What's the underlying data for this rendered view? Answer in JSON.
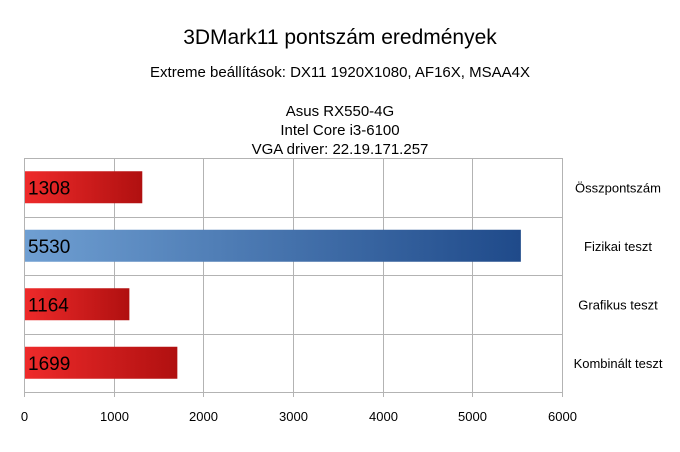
{
  "chart_data": {
    "type": "bar",
    "orientation": "horizontal",
    "title": "3DMark11 pontszám eredmények",
    "subtitle": "Extreme beállítások: DX11 1920X1080, AF16X, MSAA4X",
    "info_lines": [
      "Asus RX550-4G",
      "Intel Core i3-6100",
      "VGA driver: 22.19.171.257"
    ],
    "categories": [
      "Összpontszám",
      "Fizikai teszt",
      "Grafikus teszt",
      "Kombinált teszt"
    ],
    "values": [
      1308,
      5530,
      1164,
      1699
    ],
    "data_labels": [
      "1308",
      "5530",
      "1164",
      "1699"
    ],
    "bar_colors": [
      "#cc1f1f",
      "#4a78b0",
      "#cc1f1f",
      "#cc1f1f"
    ],
    "category_label_position": "right",
    "xlim": [
      0,
      6000
    ],
    "x_ticks": [
      0,
      1000,
      2000,
      3000,
      4000,
      5000,
      6000
    ],
    "x_tick_labels": [
      "0",
      "1000",
      "2000",
      "3000",
      "4000",
      "5000",
      "6000"
    ],
    "grid": true,
    "legend": false
  }
}
